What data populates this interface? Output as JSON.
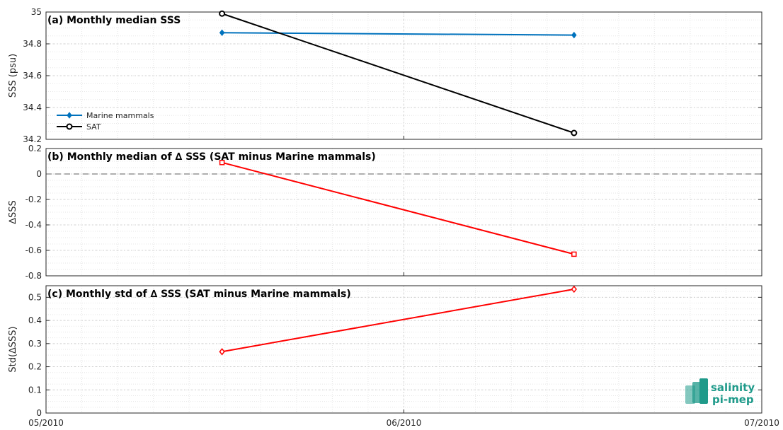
{
  "x_ticks": [
    "05/2010",
    "06/2010",
    "07/2010"
  ],
  "chart_data": [
    {
      "type": "line",
      "title": "(a) Monthly median SSS",
      "ylabel": "SSS (psu)",
      "ylim": [
        34.2,
        35
      ],
      "yticks": [
        "34.2",
        "34.4",
        "34.6",
        "34.8",
        "35"
      ],
      "x": [
        "2010-05-16",
        "2010-06-15"
      ],
      "series": [
        {
          "name": "Marine mammals",
          "values": [
            34.87,
            34.855
          ],
          "color": "#0072bd",
          "marker": "diamond"
        },
        {
          "name": "SAT",
          "values": [
            34.99,
            34.24
          ],
          "color": "#000000",
          "marker": "circle"
        }
      ],
      "legend": "bottom-left",
      "grid": true
    },
    {
      "type": "line",
      "title": "(b) Monthly median of ∆ SSS (SAT minus Marine mammals)",
      "ylabel": "∆SSS",
      "ylim": [
        -0.8,
        0.2
      ],
      "yticks": [
        "-0.8",
        "-0.6",
        "-0.4",
        "-0.2",
        "0",
        "0.2"
      ],
      "x": [
        "2010-05-16",
        "2010-06-15"
      ],
      "series": [
        {
          "values": [
            0.09,
            -0.63
          ],
          "color": "#ff0000",
          "marker": "square"
        }
      ],
      "reference_line": 0,
      "grid": true
    },
    {
      "type": "line",
      "title": "(c) Monthly std of ∆ SSS (SAT minus Marine mammals)",
      "ylabel": "Std(∆SSS)",
      "ylim": [
        0,
        0.55
      ],
      "yticks": [
        "0",
        "0.1",
        "0.2",
        "0.3",
        "0.4",
        "0.5"
      ],
      "x": [
        "2010-05-16",
        "2010-06-15"
      ],
      "series": [
        {
          "values": [
            0.265,
            0.535
          ],
          "color": "#ff0000",
          "marker": "diamond"
        }
      ],
      "grid": true
    }
  ],
  "logo": {
    "line1": "salinity",
    "line2": "pi-mep",
    "color": "#1f9a8a"
  }
}
